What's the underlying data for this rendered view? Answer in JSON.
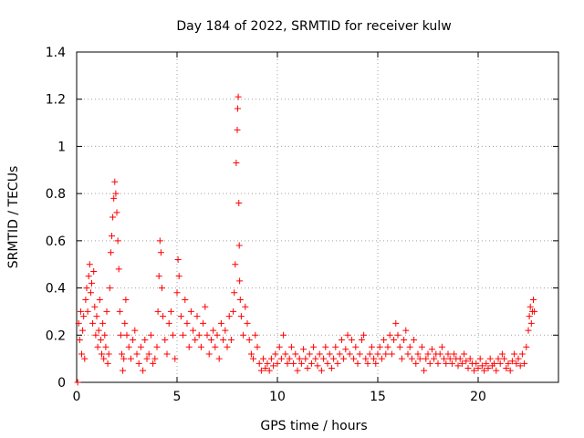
{
  "chart_data": {
    "type": "scatter",
    "title": "Day 184 of 2022, SRMTID for receiver kulw",
    "xlabel": "GPS time / hours",
    "ylabel": "SRMTID / TECUs",
    "xlim": [
      0,
      24
    ],
    "ylim": [
      0,
      1.4
    ],
    "x_ticks": [
      0,
      5,
      10,
      15,
      20
    ],
    "y_ticks": [
      0,
      0.2,
      0.4,
      0.6,
      0.8,
      1,
      1.2,
      1.4
    ],
    "x_tick_labels": [
      "0",
      "5",
      "10",
      "15",
      "20"
    ],
    "y_tick_labels": [
      "0",
      "0.2",
      "0.4",
      "0.6",
      "0.8",
      "1",
      "1.2",
      "1.4"
    ],
    "grid": true,
    "marker": "+",
    "color": "#ff0000",
    "series": [
      {
        "name": "SRMTID",
        "points": [
          [
            0.05,
            0.0
          ],
          [
            0.1,
            0.25
          ],
          [
            0.15,
            0.18
          ],
          [
            0.2,
            0.3
          ],
          [
            0.25,
            0.12
          ],
          [
            0.3,
            0.22
          ],
          [
            0.35,
            0.28
          ],
          [
            0.4,
            0.1
          ],
          [
            0.45,
            0.35
          ],
          [
            0.5,
            0.4
          ],
          [
            0.55,
            0.3
          ],
          [
            0.6,
            0.45
          ],
          [
            0.65,
            0.5
          ],
          [
            0.7,
            0.38
          ],
          [
            0.75,
            0.42
          ],
          [
            0.8,
            0.25
          ],
          [
            0.85,
            0.47
          ],
          [
            0.9,
            0.32
          ],
          [
            0.95,
            0.2
          ],
          [
            1.0,
            0.28
          ],
          [
            1.05,
            0.15
          ],
          [
            1.1,
            0.22
          ],
          [
            1.15,
            0.35
          ],
          [
            1.2,
            0.18
          ],
          [
            1.25,
            0.12
          ],
          [
            1.3,
            0.25
          ],
          [
            1.35,
            0.1
          ],
          [
            1.4,
            0.2
          ],
          [
            1.45,
            0.15
          ],
          [
            1.5,
            0.3
          ],
          [
            1.55,
            0.08
          ],
          [
            1.6,
            0.12
          ],
          [
            1.65,
            0.4
          ],
          [
            1.7,
            0.55
          ],
          [
            1.75,
            0.62
          ],
          [
            1.8,
            0.7
          ],
          [
            1.85,
            0.78
          ],
          [
            1.9,
            0.85
          ],
          [
            1.95,
            0.8
          ],
          [
            2.0,
            0.72
          ],
          [
            2.05,
            0.6
          ],
          [
            2.1,
            0.48
          ],
          [
            2.15,
            0.3
          ],
          [
            2.2,
            0.2
          ],
          [
            2.25,
            0.12
          ],
          [
            2.3,
            0.05
          ],
          [
            2.35,
            0.1
          ],
          [
            2.4,
            0.25
          ],
          [
            2.45,
            0.35
          ],
          [
            2.5,
            0.2
          ],
          [
            2.6,
            0.15
          ],
          [
            2.7,
            0.1
          ],
          [
            2.8,
            0.18
          ],
          [
            2.9,
            0.22
          ],
          [
            3.0,
            0.12
          ],
          [
            3.1,
            0.08
          ],
          [
            3.2,
            0.15
          ],
          [
            3.3,
            0.05
          ],
          [
            3.4,
            0.18
          ],
          [
            3.5,
            0.1
          ],
          [
            3.6,
            0.12
          ],
          [
            3.7,
            0.2
          ],
          [
            3.8,
            0.08
          ],
          [
            3.9,
            0.1
          ],
          [
            4.0,
            0.15
          ],
          [
            4.05,
            0.3
          ],
          [
            4.1,
            0.45
          ],
          [
            4.15,
            0.6
          ],
          [
            4.2,
            0.55
          ],
          [
            4.25,
            0.4
          ],
          [
            4.3,
            0.28
          ],
          [
            4.4,
            0.18
          ],
          [
            4.5,
            0.12
          ],
          [
            4.6,
            0.25
          ],
          [
            4.7,
            0.3
          ],
          [
            4.8,
            0.2
          ],
          [
            4.9,
            0.1
          ],
          [
            5.0,
            0.38
          ],
          [
            5.05,
            0.52
          ],
          [
            5.1,
            0.45
          ],
          [
            5.2,
            0.28
          ],
          [
            5.3,
            0.2
          ],
          [
            5.4,
            0.35
          ],
          [
            5.5,
            0.25
          ],
          [
            5.6,
            0.15
          ],
          [
            5.7,
            0.3
          ],
          [
            5.8,
            0.22
          ],
          [
            5.9,
            0.18
          ],
          [
            6.0,
            0.28
          ],
          [
            6.1,
            0.2
          ],
          [
            6.2,
            0.15
          ],
          [
            6.3,
            0.25
          ],
          [
            6.4,
            0.32
          ],
          [
            6.5,
            0.2
          ],
          [
            6.6,
            0.12
          ],
          [
            6.7,
            0.18
          ],
          [
            6.8,
            0.22
          ],
          [
            6.9,
            0.15
          ],
          [
            7.0,
            0.2
          ],
          [
            7.1,
            0.1
          ],
          [
            7.2,
            0.25
          ],
          [
            7.3,
            0.18
          ],
          [
            7.4,
            0.22
          ],
          [
            7.5,
            0.15
          ],
          [
            7.6,
            0.28
          ],
          [
            7.7,
            0.18
          ],
          [
            7.8,
            0.3
          ],
          [
            7.85,
            0.38
          ],
          [
            7.9,
            0.5
          ],
          [
            7.95,
            0.93
          ],
          [
            8.0,
            1.07
          ],
          [
            8.02,
            1.16
          ],
          [
            8.05,
            1.21
          ],
          [
            8.08,
            0.76
          ],
          [
            8.1,
            0.58
          ],
          [
            8.12,
            0.43
          ],
          [
            8.15,
            0.35
          ],
          [
            8.2,
            0.28
          ],
          [
            8.3,
            0.2
          ],
          [
            8.4,
            0.32
          ],
          [
            8.5,
            0.25
          ],
          [
            8.6,
            0.18
          ],
          [
            8.7,
            0.12
          ],
          [
            8.8,
            0.1
          ],
          [
            8.9,
            0.2
          ],
          [
            9.0,
            0.15
          ],
          [
            9.1,
            0.08
          ],
          [
            9.2,
            0.05
          ],
          [
            9.3,
            0.1
          ],
          [
            9.4,
            0.06
          ],
          [
            9.5,
            0.08
          ],
          [
            9.6,
            0.05
          ],
          [
            9.7,
            0.1
          ],
          [
            9.8,
            0.07
          ],
          [
            9.9,
            0.12
          ],
          [
            10.0,
            0.08
          ],
          [
            10.1,
            0.15
          ],
          [
            10.2,
            0.1
          ],
          [
            10.3,
            0.2
          ],
          [
            10.4,
            0.12
          ],
          [
            10.5,
            0.08
          ],
          [
            10.6,
            0.1
          ],
          [
            10.7,
            0.15
          ],
          [
            10.8,
            0.08
          ],
          [
            10.9,
            0.12
          ],
          [
            11.0,
            0.05
          ],
          [
            11.1,
            0.1
          ],
          [
            11.2,
            0.08
          ],
          [
            11.3,
            0.14
          ],
          [
            11.4,
            0.1
          ],
          [
            11.5,
            0.06
          ],
          [
            11.6,
            0.12
          ],
          [
            11.7,
            0.08
          ],
          [
            11.8,
            0.15
          ],
          [
            11.9,
            0.1
          ],
          [
            12.0,
            0.07
          ],
          [
            12.1,
            0.12
          ],
          [
            12.2,
            0.05
          ],
          [
            12.3,
            0.1
          ],
          [
            12.4,
            0.15
          ],
          [
            12.5,
            0.08
          ],
          [
            12.6,
            0.12
          ],
          [
            12.7,
            0.06
          ],
          [
            12.8,
            0.1
          ],
          [
            12.9,
            0.15
          ],
          [
            13.0,
            0.08
          ],
          [
            13.1,
            0.12
          ],
          [
            13.2,
            0.18
          ],
          [
            13.3,
            0.1
          ],
          [
            13.4,
            0.14
          ],
          [
            13.5,
            0.2
          ],
          [
            13.6,
            0.12
          ],
          [
            13.7,
            0.18
          ],
          [
            13.8,
            0.1
          ],
          [
            13.9,
            0.15
          ],
          [
            14.0,
            0.08
          ],
          [
            14.1,
            0.12
          ],
          [
            14.2,
            0.18
          ],
          [
            14.3,
            0.2
          ],
          [
            14.4,
            0.1
          ],
          [
            14.5,
            0.08
          ],
          [
            14.6,
            0.12
          ],
          [
            14.7,
            0.15
          ],
          [
            14.8,
            0.1
          ],
          [
            14.9,
            0.08
          ],
          [
            15.0,
            0.12
          ],
          [
            15.1,
            0.15
          ],
          [
            15.2,
            0.1
          ],
          [
            15.3,
            0.18
          ],
          [
            15.4,
            0.12
          ],
          [
            15.5,
            0.15
          ],
          [
            15.6,
            0.2
          ],
          [
            15.7,
            0.12
          ],
          [
            15.8,
            0.18
          ],
          [
            15.9,
            0.25
          ],
          [
            16.0,
            0.2
          ],
          [
            16.1,
            0.15
          ],
          [
            16.2,
            0.1
          ],
          [
            16.3,
            0.18
          ],
          [
            16.4,
            0.22
          ],
          [
            16.5,
            0.12
          ],
          [
            16.6,
            0.15
          ],
          [
            16.7,
            0.1
          ],
          [
            16.8,
            0.18
          ],
          [
            16.9,
            0.08
          ],
          [
            17.0,
            0.12
          ],
          [
            17.1,
            0.1
          ],
          [
            17.2,
            0.15
          ],
          [
            17.3,
            0.05
          ],
          [
            17.4,
            0.1
          ],
          [
            17.5,
            0.12
          ],
          [
            17.6,
            0.08
          ],
          [
            17.7,
            0.14
          ],
          [
            17.8,
            0.1
          ],
          [
            17.9,
            0.12
          ],
          [
            18.0,
            0.08
          ],
          [
            18.1,
            0.12
          ],
          [
            18.2,
            0.15
          ],
          [
            18.3,
            0.1
          ],
          [
            18.4,
            0.08
          ],
          [
            18.5,
            0.12
          ],
          [
            18.6,
            0.1
          ],
          [
            18.7,
            0.08
          ],
          [
            18.8,
            0.12
          ],
          [
            18.9,
            0.1
          ],
          [
            19.0,
            0.07
          ],
          [
            19.1,
            0.1
          ],
          [
            19.2,
            0.08
          ],
          [
            19.3,
            0.12
          ],
          [
            19.4,
            0.09
          ],
          [
            19.5,
            0.06
          ],
          [
            19.6,
            0.1
          ],
          [
            19.7,
            0.08
          ],
          [
            19.8,
            0.05
          ],
          [
            19.9,
            0.08
          ],
          [
            20.0,
            0.06
          ],
          [
            20.1,
            0.1
          ],
          [
            20.2,
            0.07
          ],
          [
            20.3,
            0.05
          ],
          [
            20.4,
            0.08
          ],
          [
            20.5,
            0.06
          ],
          [
            20.6,
            0.1
          ],
          [
            20.7,
            0.07
          ],
          [
            20.8,
            0.08
          ],
          [
            20.9,
            0.05
          ],
          [
            21.0,
            0.1
          ],
          [
            21.1,
            0.08
          ],
          [
            21.2,
            0.12
          ],
          [
            21.3,
            0.1
          ],
          [
            21.4,
            0.06
          ],
          [
            21.5,
            0.08
          ],
          [
            21.6,
            0.05
          ],
          [
            21.7,
            0.09
          ],
          [
            21.8,
            0.12
          ],
          [
            21.9,
            0.08
          ],
          [
            22.0,
            0.1
          ],
          [
            22.1,
            0.07
          ],
          [
            22.2,
            0.12
          ],
          [
            22.3,
            0.08
          ],
          [
            22.4,
            0.15
          ],
          [
            22.5,
            0.22
          ],
          [
            22.55,
            0.28
          ],
          [
            22.6,
            0.32
          ],
          [
            22.65,
            0.25
          ],
          [
            22.7,
            0.3
          ],
          [
            22.75,
            0.35
          ],
          [
            22.8,
            0.3
          ]
        ]
      }
    ]
  }
}
